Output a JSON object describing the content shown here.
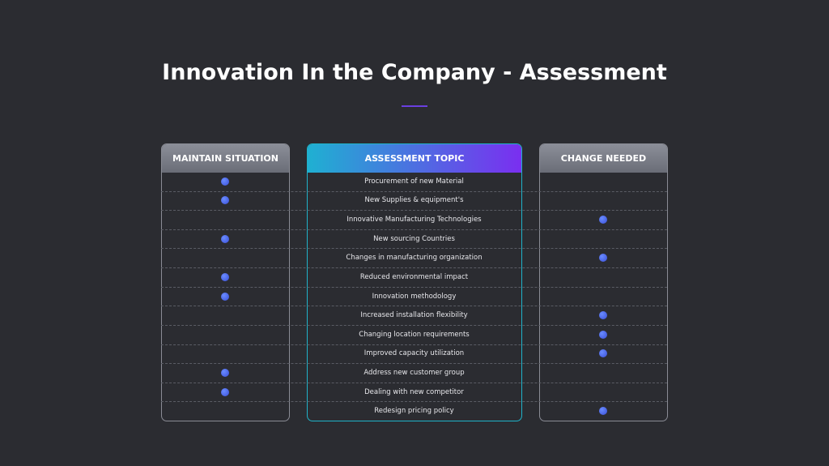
{
  "header": {
    "title": "Innovation In the Company - Assessment"
  },
  "table": {
    "columns": [
      "MAINTAIN SITUATION",
      "ASSESSMENT TOPIC",
      "CHANGE NEEDED"
    ],
    "rows": [
      {
        "topic": "Procurement of new Material",
        "maintain": true,
        "change": false
      },
      {
        "topic": "New Supplies & equipment's",
        "maintain": true,
        "change": false
      },
      {
        "topic": "Innovative Manufacturing Technologies",
        "maintain": false,
        "change": true
      },
      {
        "topic": "New sourcing Countries",
        "maintain": true,
        "change": false
      },
      {
        "topic": "Changes in manufacturing organization",
        "maintain": false,
        "change": true
      },
      {
        "topic": "Reduced environmental impact",
        "maintain": true,
        "change": false
      },
      {
        "topic": "Innovation methodology",
        "maintain": true,
        "change": false
      },
      {
        "topic": "Increased installation flexibility",
        "maintain": false,
        "change": true
      },
      {
        "topic": "Changing location requirements",
        "maintain": false,
        "change": true
      },
      {
        "topic": "Improved capacity utilization",
        "maintain": false,
        "change": true
      },
      {
        "topic": "Address new customer group",
        "maintain": true,
        "change": false
      },
      {
        "topic": "Dealing with new competitor",
        "maintain": true,
        "change": false
      },
      {
        "topic": "Redesign pricing policy",
        "maintain": false,
        "change": true
      }
    ]
  }
}
